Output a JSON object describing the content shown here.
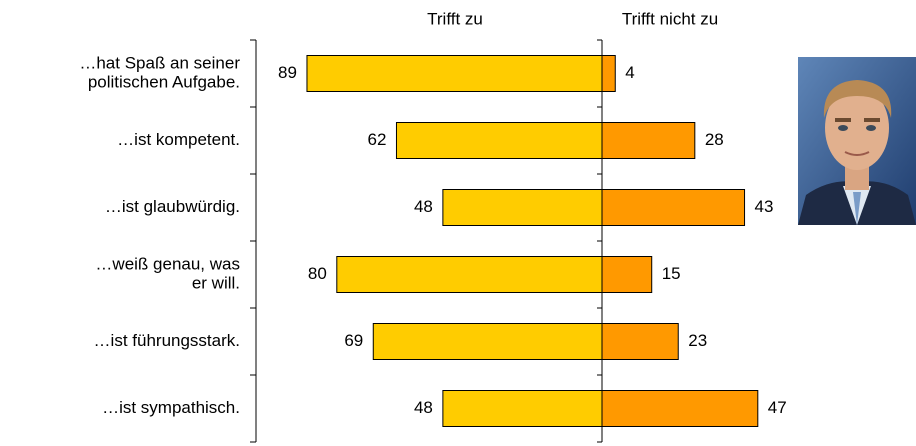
{
  "chart_data": {
    "type": "diverging_bar",
    "categories": [
      [
        "…hat Spaß an seiner",
        "politischen Aufgabe."
      ],
      [
        "…ist kompetent."
      ],
      [
        "…ist glaubwürdig."
      ],
      [
        "…weiß genau, was",
        "er will."
      ],
      [
        "…ist führungsstark."
      ],
      [
        "…ist sympathisch."
      ]
    ],
    "series": [
      {
        "name": "Trifft zu",
        "color": "#ffcc00",
        "values": [
          89,
          62,
          48,
          80,
          69,
          48
        ]
      },
      {
        "name": "Trifft nicht zu",
        "color": "#ff9900",
        "values": [
          4,
          28,
          43,
          15,
          23,
          47
        ]
      }
    ]
  }
}
